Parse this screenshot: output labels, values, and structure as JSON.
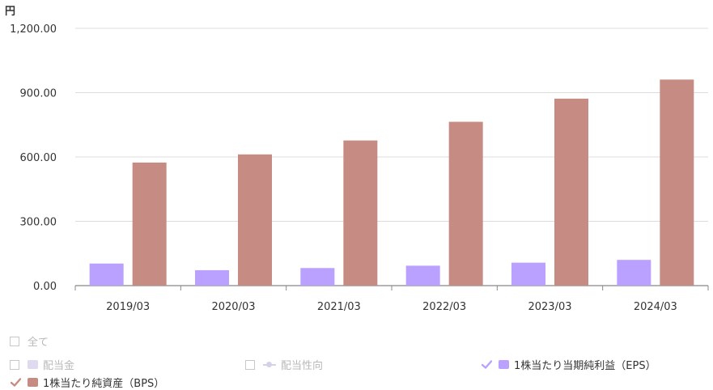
{
  "chart_data": {
    "type": "bar",
    "unit_label": "円",
    "categories": [
      "2019/03",
      "2020/03",
      "2021/03",
      "2022/03",
      "2023/03",
      "2024/03"
    ],
    "ylim": [
      0,
      1200
    ],
    "yticks": [
      "0.00",
      "300.00",
      "600.00",
      "900.00",
      "1,200.00"
    ],
    "ytick_values": [
      0,
      300,
      600,
      900,
      1200
    ],
    "grid": true,
    "series": [
      {
        "name": "1株当たり当期純利益（EPS）",
        "color": "#baa0ff",
        "values": [
          103,
          72,
          82,
          93,
          107,
          120
        ]
      },
      {
        "name": "1株当たり純資産（BPS）",
        "color": "#c68b83",
        "values": [
          574,
          612,
          677,
          764,
          872,
          961
        ]
      }
    ]
  },
  "legend": {
    "all_label": "全て",
    "items": [
      {
        "label": "配当金",
        "checked": false,
        "color": "#e0daf0",
        "kind": "bar"
      },
      {
        "label": "配当性向",
        "checked": false,
        "color": "#d6d0e8",
        "kind": "line"
      },
      {
        "label": "1株当たり当期純利益（EPS）",
        "checked": true,
        "color": "#baa0ff",
        "kind": "bar"
      },
      {
        "label": "1株当たり純資産（BPS）",
        "checked": true,
        "color": "#c68b83",
        "kind": "bar"
      }
    ],
    "check_color": "#baa0ff",
    "check_color_bps": "#c68b83"
  }
}
